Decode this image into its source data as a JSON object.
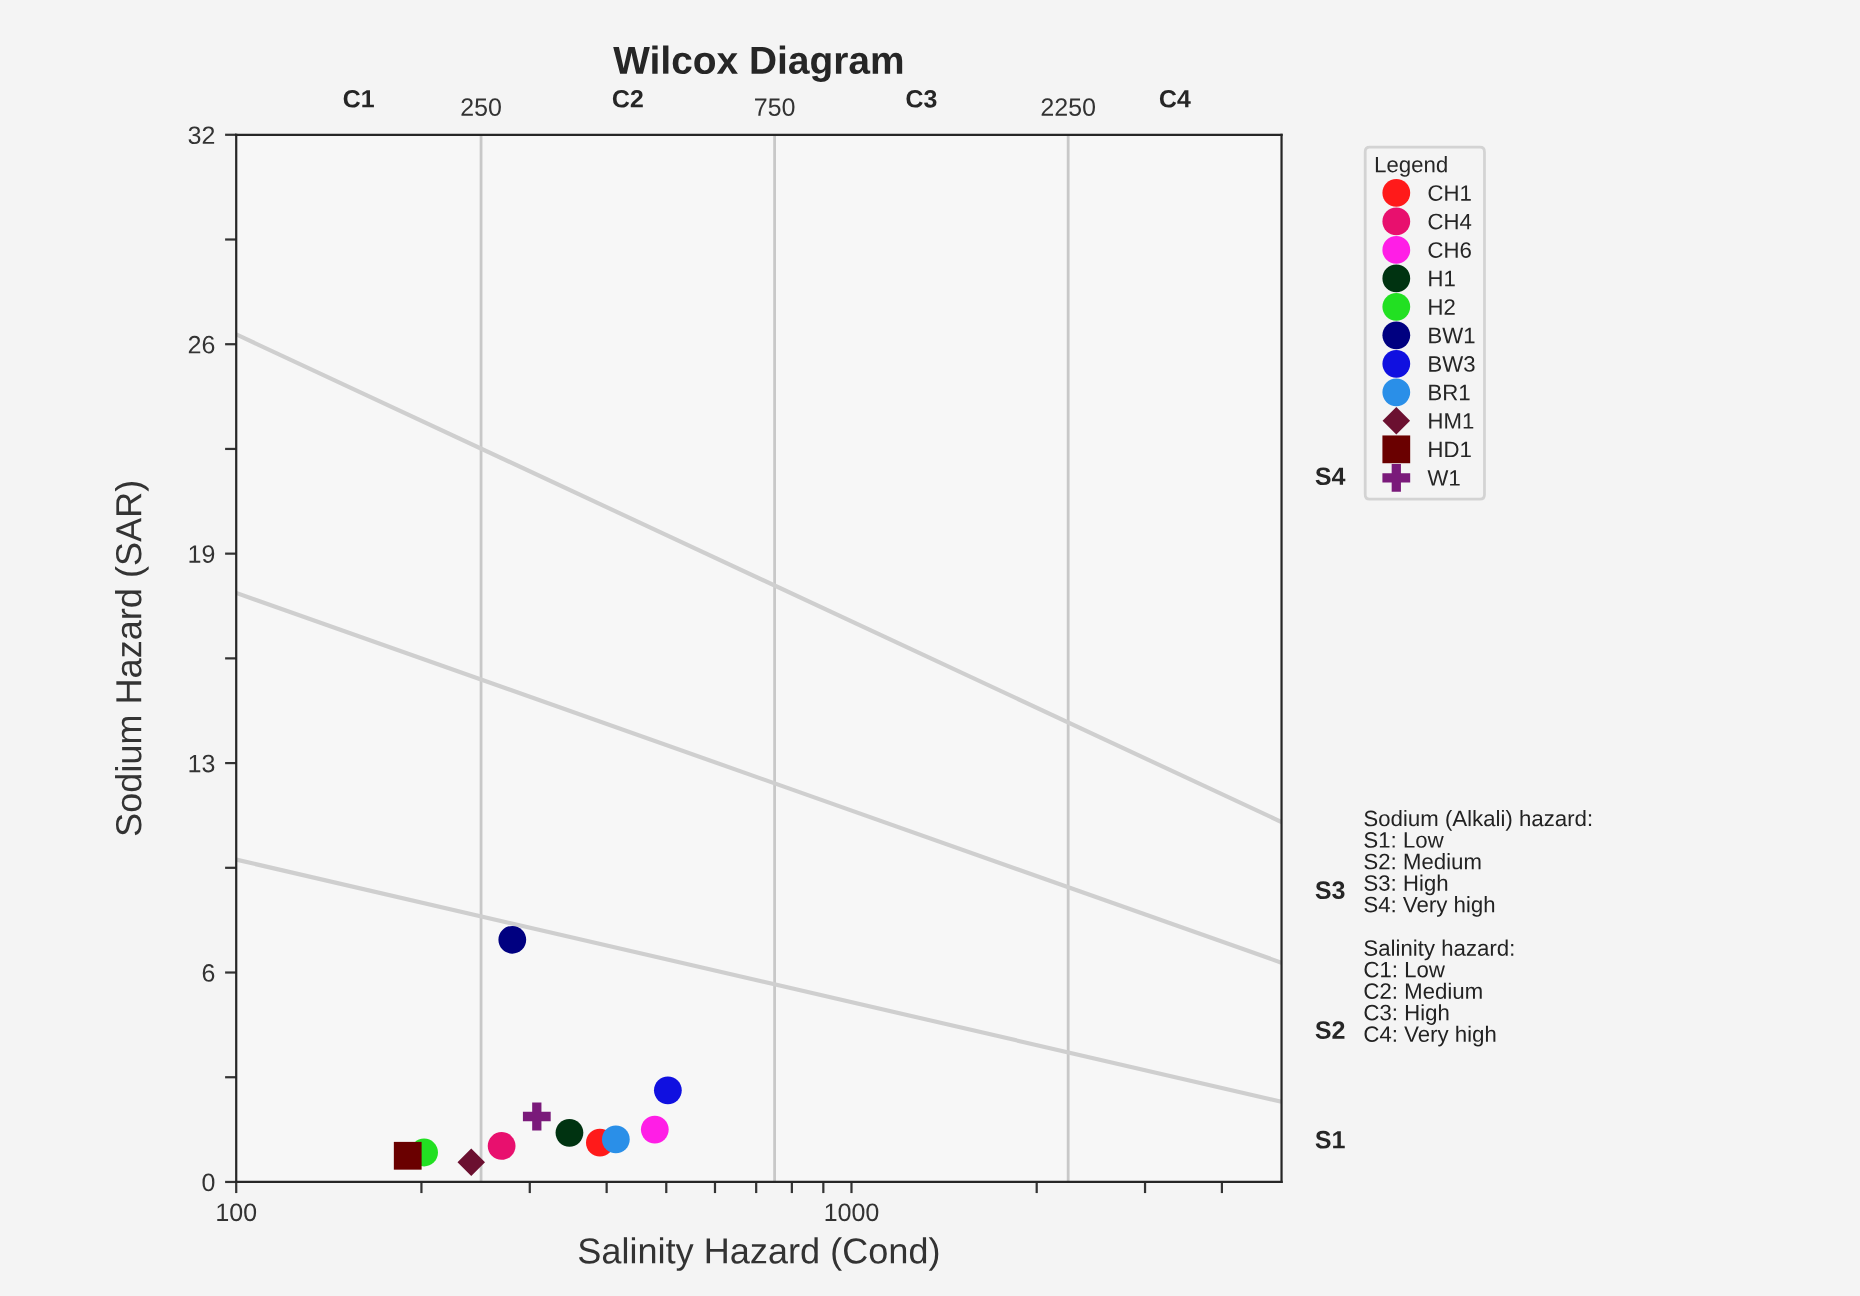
{
  "chart_data": {
    "type": "scatter",
    "title": "Wilcox Diagram",
    "xlabel": "Salinity Hazard (Cond)",
    "ylabel": "Sodium Hazard (SAR)",
    "log": "x",
    "xlim": [
      100,
      5000
    ],
    "ylim": [
      0,
      32
    ],
    "xticks": [
      100,
      {
        "value": 200,
        "label": null
      },
      {
        "value": 300,
        "label": null
      },
      {
        "value": 400,
        "label": null
      },
      {
        "value": 500,
        "label": null
      },
      {
        "value": 600,
        "label": null
      },
      {
        "value": 700,
        "label": null
      },
      {
        "value": 800,
        "label": null
      },
      {
        "value": 900,
        "label": null
      },
      1000,
      {
        "value": 2000,
        "label": null
      },
      {
        "value": 3000,
        "label": null
      },
      {
        "value": 4000,
        "label": null
      }
    ],
    "yticks": [
      0,
      {
        "value": 3.2,
        "label": null
      },
      {
        "value": 6.4,
        "label": "6"
      },
      {
        "value": 9.6,
        "label": null
      },
      {
        "value": 12.8,
        "label": "13"
      },
      {
        "value": 16,
        "label": null
      },
      {
        "value": 19.2,
        "label": "19"
      },
      {
        "value": 22.4,
        "label": null
      },
      {
        "value": 25.6,
        "label": "26"
      },
      {
        "value": 28.8,
        "label": null
      },
      32
    ],
    "grid": false,
    "legend": "right",
    "legend_title": "Legend",
    "ref_lines": [
      {
        "axis": "x",
        "value": 250,
        "label": "250",
        "color": "#c8c8c8"
      },
      {
        "axis": "x",
        "value": 750,
        "label": "750",
        "color": "#c8c8c8"
      },
      {
        "axis": "x",
        "value": 2250,
        "label": "2250",
        "color": "#c8c8c8"
      }
    ],
    "series": [
      {
        "type": "line",
        "color": "#cfcfcf",
        "marker": "none",
        "x": [
          100,
          5000
        ],
        "values": [
          9.85,
          2.45
        ]
      },
      {
        "type": "line",
        "color": "#cfcfcf",
        "marker": "none",
        "x": [
          100,
          5000
        ],
        "values": [
          18.0,
          6.7
        ]
      },
      {
        "type": "line",
        "color": "#cfcfcf",
        "marker": "none",
        "x": [
          100,
          5000
        ],
        "values": [
          25.9,
          11.0
        ]
      },
      {
        "name": "CH1",
        "color": "#ff1a1a",
        "marker": "circle",
        "x": [
          390
        ],
        "values": [
          1.2
        ]
      },
      {
        "name": "CH4",
        "color": "#e8106e",
        "marker": "circle",
        "x": [
          270
        ],
        "values": [
          1.1
        ]
      },
      {
        "name": "CH6",
        "color": "#ff1ee6",
        "marker": "circle",
        "x": [
          479
        ],
        "values": [
          1.6
        ]
      },
      {
        "name": "H1",
        "color": "#003311",
        "marker": "circle",
        "x": [
          348
        ],
        "values": [
          1.5
        ]
      },
      {
        "name": "H2",
        "color": "#22e022",
        "marker": "circle",
        "x": [
          202
        ],
        "values": [
          0.9
        ]
      },
      {
        "name": "BW1",
        "color": "#000080",
        "marker": "circle",
        "x": [
          281
        ],
        "values": [
          7.4
        ]
      },
      {
        "name": "BW3",
        "color": "#1010e0",
        "marker": "circle",
        "x": [
          503
        ],
        "values": [
          2.8
        ]
      },
      {
        "name": "BR1",
        "color": "#2a8fe8",
        "marker": "circle",
        "x": [
          414
        ],
        "values": [
          1.3
        ]
      },
      {
        "name": "HM1",
        "color": "#6b1030",
        "marker": "diamond",
        "x": [
          241
        ],
        "values": [
          0.6
        ]
      },
      {
        "name": "HD1",
        "color": "#6a0000",
        "marker": "square",
        "x": [
          190
        ],
        "values": [
          0.8
        ]
      },
      {
        "name": "W1",
        "color": "#7a1a7a",
        "marker": "cross",
        "x": [
          308
        ],
        "values": [
          2.0
        ]
      }
    ],
    "annotations": [
      "C1",
      "C2",
      "C3",
      "C4",
      "S1",
      "S2",
      "S3",
      "S4",
      "Sodium (Alkali) hazard:\nS1: Low\nS2: Medium\nS3: High\nS4: Very high",
      "Salinity hazard:\nC1: Low\nC2: Medium\nC3: High\nC4: Very high"
    ]
  }
}
